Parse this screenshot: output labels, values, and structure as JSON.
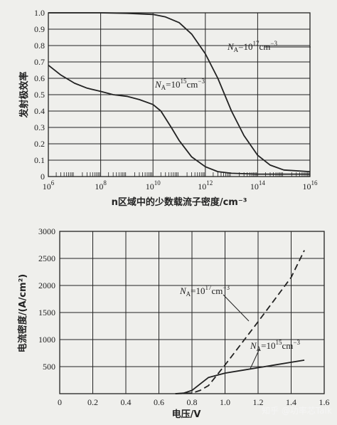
{
  "colors": {
    "background": "#efefec",
    "ink": "#222222",
    "grid": "#222222"
  },
  "watermark": "知乎 @功率芯Talk",
  "chart_data": [
    {
      "type": "line",
      "title": "",
      "xlabel": "n区域中的少数载流子密度/cm⁻³",
      "ylabel": "发射极效率",
      "x_scale": "log",
      "xlim": [
        1000000.0,
        1e+16
      ],
      "ylim": [
        0,
        1.0
      ],
      "x_ticks": [
        {
          "base": "10",
          "exp": "6"
        },
        {
          "base": "10",
          "exp": "8"
        },
        {
          "base": "10",
          "exp": "10"
        },
        {
          "base": "10",
          "exp": "12"
        },
        {
          "base": "10",
          "exp": "14"
        },
        {
          "base": "10",
          "exp": "16"
        }
      ],
      "y_ticks": [
        "0",
        "0.1",
        "0.2",
        "0.3",
        "0.4",
        "0.5",
        "0.6",
        "0.7",
        "0.8",
        "0.9",
        "1.0"
      ],
      "grid": true,
      "series": [
        {
          "name": "NA=10^17cm^-3",
          "dash": false,
          "x": [
            1000000.0,
            10000000.0,
            100000000.0,
            1000000000.0,
            10000000000.0,
            30000000000.0,
            100000000000.0,
            300000000000.0,
            1000000000000.0,
            3000000000000.0,
            10000000000000.0,
            30000000000000.0,
            100000000000000.0,
            300000000000000.0,
            1000000000000000.0,
            1e+16
          ],
          "y": [
            1.0,
            1.0,
            1.0,
            0.997,
            0.99,
            0.975,
            0.94,
            0.87,
            0.75,
            0.6,
            0.4,
            0.25,
            0.13,
            0.07,
            0.04,
            0.03
          ]
        },
        {
          "name": "NA=10^15cm^-3",
          "dash": false,
          "x": [
            1000000.0,
            3000000.0,
            10000000.0,
            30000000.0,
            100000000.0,
            300000000.0,
            1000000000.0,
            3000000000.0,
            10000000000.0,
            20000000000.0,
            50000000000.0,
            100000000000.0,
            300000000000.0,
            1000000000000.0,
            3000000000000.0,
            10000000000000.0,
            100000000000000.0,
            1e+16
          ],
          "y": [
            0.68,
            0.62,
            0.57,
            0.54,
            0.52,
            0.5,
            0.49,
            0.47,
            0.44,
            0.4,
            0.3,
            0.22,
            0.12,
            0.06,
            0.03,
            0.02,
            0.015,
            0.015
          ]
        }
      ],
      "annotations": [
        {
          "prefix": "N",
          "sub": "A",
          "mid": "=10",
          "sup": "17",
          "unit": "cm",
          "unit_sup": "−3"
        },
        {
          "prefix": "N",
          "sub": "A",
          "mid": "=10",
          "sup": "15",
          "unit": "cm",
          "unit_sup": "−3"
        }
      ]
    },
    {
      "type": "line",
      "title": "",
      "xlabel": "电压/V",
      "ylabel": "电流密度/(A/cm²)",
      "xlim": [
        0,
        1.6
      ],
      "ylim": [
        0,
        3000
      ],
      "x_ticks": [
        "0",
        "0.2",
        "0.4",
        "0.6",
        "0.8",
        "1.0",
        "1.2",
        "1.4",
        "1.6"
      ],
      "y_ticks": [
        "500",
        "1000",
        "1500",
        "2000",
        "2500",
        "3000"
      ],
      "grid": true,
      "series": [
        {
          "name": "NA=10^17cm^-3",
          "dash": true,
          "x": [
            0.7,
            0.8,
            0.85,
            0.9,
            1.0,
            1.1,
            1.2,
            1.3,
            1.4,
            1.48
          ],
          "y": [
            0,
            10,
            60,
            150,
            530,
            930,
            1330,
            1740,
            2150,
            2650
          ]
        },
        {
          "name": "NA=10^15cm^-3",
          "dash": false,
          "x": [
            0.7,
            0.75,
            0.8,
            0.85,
            0.9,
            1.0,
            1.1,
            1.2,
            1.3,
            1.4,
            1.48
          ],
          "y": [
            0,
            10,
            60,
            180,
            300,
            380,
            430,
            480,
            530,
            580,
            620
          ]
        }
      ],
      "annotations": [
        {
          "prefix": "N",
          "sub": "A",
          "mid": "=10",
          "sup": "17",
          "unit": "cm",
          "unit_sup": "−3"
        },
        {
          "prefix": "N",
          "sub": "A",
          "mid": "=10",
          "sup": "15",
          "unit": "cm",
          "unit_sup": "−3"
        }
      ]
    }
  ]
}
